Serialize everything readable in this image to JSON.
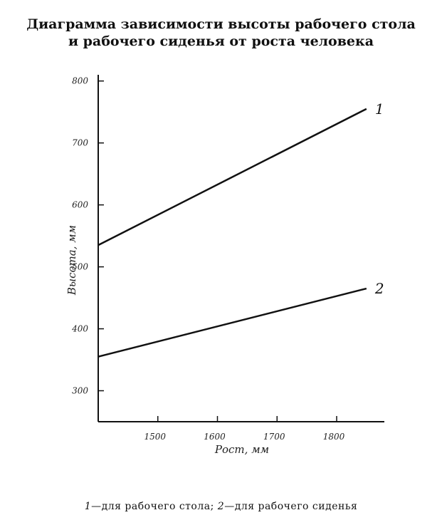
{
  "chart_data": {
    "type": "line",
    "title": "Диаграмма зависимости высоты рабочего стола",
    "subtitle": "и рабочего сиденья от роста человека",
    "xlabel": "Рост, мм",
    "ylabel": "Высота, мм",
    "x_ticks": [
      1500,
      1600,
      1700,
      1800
    ],
    "y_ticks": [
      300,
      400,
      500,
      600,
      700,
      800
    ],
    "xlim": [
      1400,
      1880
    ],
    "ylim": [
      250,
      810
    ],
    "grid": false,
    "series": [
      {
        "name": "1",
        "x": [
          1400,
          1850
        ],
        "y": [
          535,
          755
        ],
        "color": "#111111"
      },
      {
        "name": "2",
        "x": [
          1400,
          1850
        ],
        "y": [
          355,
          465
        ],
        "color": "#111111"
      }
    ],
    "caption": {
      "num1": "1",
      "text1": "—для рабочего стола;",
      "num2": "2",
      "text2": "—для рабочего сиденья"
    }
  }
}
